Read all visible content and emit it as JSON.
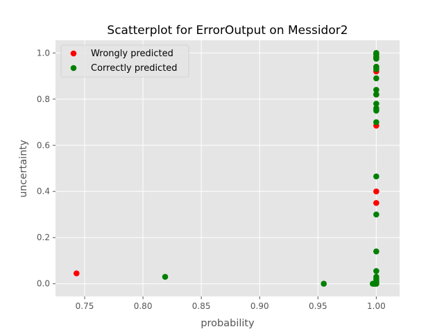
{
  "chart_data": {
    "type": "scatter",
    "title": "Scatterplot for ErrorOutput on Messidor2",
    "xlabel": "probability",
    "ylabel": "uncertainty",
    "xlim": [
      0.725,
      1.02
    ],
    "ylim": [
      -0.055,
      1.055
    ],
    "xticks": [
      0.75,
      0.8,
      0.85,
      0.9,
      0.95,
      1.0
    ],
    "xtick_labels": [
      "0.75",
      "0.80",
      "0.85",
      "0.90",
      "0.95",
      "1.00"
    ],
    "yticks": [
      0.0,
      0.2,
      0.4,
      0.6,
      0.8,
      1.0
    ],
    "ytick_labels": [
      "0.0",
      "0.2",
      "0.4",
      "0.6",
      "0.8",
      "1.0"
    ],
    "grid": true,
    "legend_position": "top-left",
    "background": "#e5e5e5",
    "grid_color": "#ffffff",
    "series": [
      {
        "name": "Wrongly predicted",
        "color": "#ff0000",
        "points": [
          [
            0.743,
            0.045
          ],
          [
            1.0,
            0.4
          ],
          [
            1.0,
            0.35
          ],
          [
            1.0,
            0.685
          ],
          [
            1.0,
            0.82
          ],
          [
            1.0,
            0.92
          ],
          [
            1.0,
            0.94
          ],
          [
            1.0,
            0.98
          ],
          [
            1.0,
            0.995
          ],
          [
            1.0,
            0.005
          ],
          [
            1.0,
            0.0
          ]
        ]
      },
      {
        "name": "Correctly predicted",
        "color": "#008000",
        "points": [
          [
            0.819,
            0.03
          ],
          [
            0.955,
            0.0
          ],
          [
            0.997,
            0.0
          ],
          [
            0.998,
            0.0
          ],
          [
            0.999,
            0.0
          ],
          [
            1.0,
            0.0
          ],
          [
            1.0,
            0.005
          ],
          [
            1.0,
            0.01
          ],
          [
            1.0,
            0.02
          ],
          [
            1.0,
            0.03
          ],
          [
            1.0,
            0.055
          ],
          [
            1.0,
            0.14
          ],
          [
            1.0,
            0.3
          ],
          [
            1.0,
            0.465
          ],
          [
            1.0,
            0.7
          ],
          [
            1.0,
            0.75
          ],
          [
            1.0,
            0.76
          ],
          [
            1.0,
            0.78
          ],
          [
            1.0,
            0.82
          ],
          [
            1.0,
            0.84
          ],
          [
            1.0,
            0.89
          ],
          [
            1.0,
            0.93
          ],
          [
            1.0,
            0.94
          ],
          [
            1.0,
            0.975
          ],
          [
            1.0,
            0.985
          ],
          [
            1.0,
            0.995
          ],
          [
            1.0,
            1.0
          ]
        ]
      }
    ]
  }
}
